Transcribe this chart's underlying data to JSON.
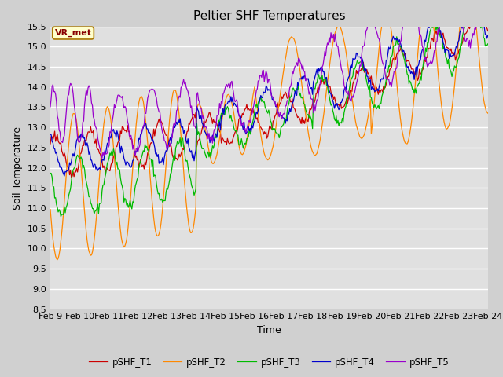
{
  "title": "Peltier SHF Temperatures",
  "xlabel": "Time",
  "ylabel": "Soil Temperature",
  "ylim": [
    8.5,
    15.5
  ],
  "tick_labels": [
    "Feb 9",
    "Feb 10",
    "Feb 11",
    "Feb 12",
    "Feb 13",
    "Feb 14",
    "Feb 15",
    "Feb 16",
    "Feb 17",
    "Feb 18",
    "Feb 19",
    "Feb 20",
    "Feb 21",
    "Feb 22",
    "Feb 23",
    "Feb 24"
  ],
  "legend_labels": [
    "pSHF_T1",
    "pSHF_T2",
    "pSHF_T3",
    "pSHF_T4",
    "pSHF_T5"
  ],
  "colors": [
    "#cc0000",
    "#ff8800",
    "#00bb00",
    "#0000cc",
    "#9900cc"
  ],
  "annotation_text": "VR_met",
  "annotation_box_facecolor": "#ffffcc",
  "annotation_box_edgecolor": "#aa7700",
  "fig_facecolor": "#d0d0d0",
  "ax_facecolor": "#e0e0e0",
  "grid_color": "white",
  "n_points": 500
}
